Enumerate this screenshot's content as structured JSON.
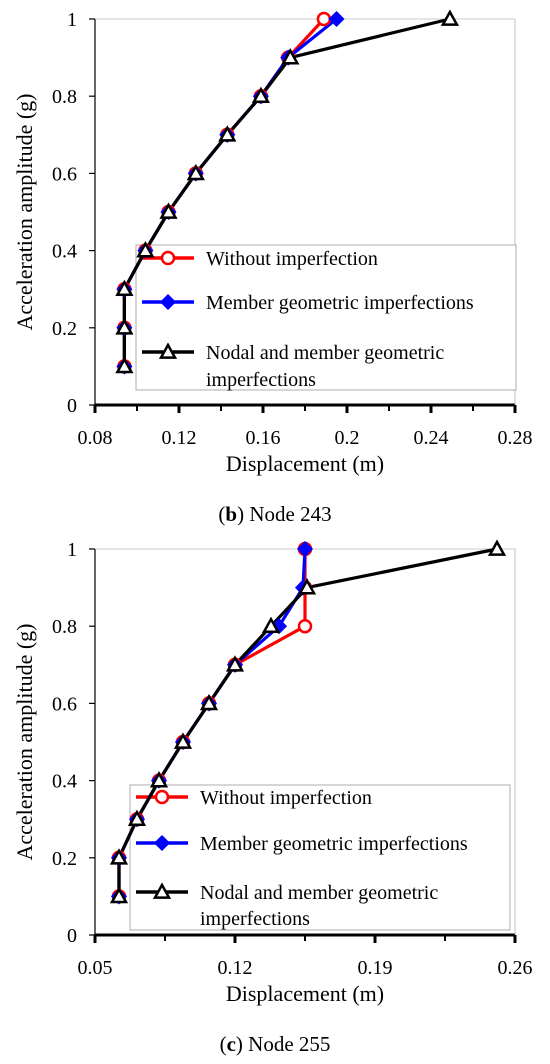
{
  "chart_data": [
    {
      "type": "line",
      "caption_letter": "b",
      "caption_text": ") Node 243",
      "caption_open": "(",
      "xlabel": "Displacement (m)",
      "ylabel": "Acceleration amplitude (g)",
      "xlim": [
        0.08,
        0.28
      ],
      "ylim": [
        0,
        1
      ],
      "xticks": [
        "0.08",
        "0.12",
        "0.16",
        "0.2",
        "0.24",
        "0.28"
      ],
      "yticks": [
        "0",
        "0.2",
        "0.4",
        "0.6",
        "0.8",
        "1"
      ],
      "legend": {
        "placement": "lower-right",
        "entries": [
          "Without  imperfection",
          "Member geometric imperfections",
          "Nodal and member geometric",
          "imperfections"
        ]
      },
      "series": [
        {
          "name": "Without  imperfection",
          "color": "#ff0000",
          "marker": "circle",
          "x": [
            0.094,
            0.094,
            0.094,
            0.104,
            0.115,
            0.128,
            0.143,
            0.159,
            0.172,
            0.189
          ],
          "y": [
            0.1,
            0.2,
            0.3,
            0.4,
            0.5,
            0.6,
            0.7,
            0.8,
            0.9,
            1.0
          ]
        },
        {
          "name": "Member geometric imperfections",
          "color": "#0000ff",
          "marker": "diamond",
          "x": [
            0.094,
            0.094,
            0.094,
            0.104,
            0.115,
            0.128,
            0.143,
            0.159,
            0.172,
            0.195
          ],
          "y": [
            0.1,
            0.2,
            0.3,
            0.4,
            0.5,
            0.6,
            0.7,
            0.8,
            0.9,
            1.0
          ]
        },
        {
          "name": "Nodal and member geometric imperfections",
          "color": "#000000",
          "marker": "triangle",
          "x": [
            0.094,
            0.094,
            0.094,
            0.104,
            0.115,
            0.128,
            0.143,
            0.159,
            0.173,
            0.249
          ],
          "y": [
            0.1,
            0.2,
            0.3,
            0.4,
            0.5,
            0.6,
            0.7,
            0.8,
            0.9,
            1.0
          ]
        }
      ]
    },
    {
      "type": "line",
      "caption_letter": "c",
      "caption_text": ") Node 255",
      "caption_open": "(",
      "xlabel": "Displacement (m)",
      "ylabel": "Acceleration amplitude (g)",
      "xlim": [
        0.05,
        0.26
      ],
      "ylim": [
        0,
        1
      ],
      "xticks": [
        "0.05",
        "0.12",
        "0.19",
        "0.26"
      ],
      "yticks": [
        "0",
        "0.2",
        "0.4",
        "0.6",
        "0.8",
        "1"
      ],
      "legend": {
        "placement": "lower-right",
        "entries": [
          "Without  imperfection",
          "Member geometric imperfections",
          "Nodal and member geometric",
          "imperfections"
        ]
      },
      "series": [
        {
          "name": "Without  imperfection",
          "color": "#ff0000",
          "marker": "circle",
          "x": [
            0.062,
            0.062,
            0.071,
            0.082,
            0.094,
            0.107,
            0.12,
            0.155,
            0.155,
            0.155
          ],
          "y": [
            0.1,
            0.2,
            0.3,
            0.4,
            0.5,
            0.6,
            0.7,
            0.8,
            0.9,
            1.0
          ]
        },
        {
          "name": "Member geometric imperfections",
          "color": "#0000ff",
          "marker": "diamond",
          "x": [
            0.062,
            0.062,
            0.071,
            0.082,
            0.094,
            0.107,
            0.12,
            0.142,
            0.154,
            0.155
          ],
          "y": [
            0.1,
            0.2,
            0.3,
            0.4,
            0.5,
            0.6,
            0.7,
            0.8,
            0.9,
            1.0
          ]
        },
        {
          "name": "Nodal and member geometric imperfections",
          "color": "#000000",
          "marker": "triangle",
          "x": [
            0.062,
            0.062,
            0.071,
            0.082,
            0.094,
            0.107,
            0.12,
            0.138,
            0.156,
            0.251
          ],
          "y": [
            0.1,
            0.2,
            0.3,
            0.4,
            0.5,
            0.6,
            0.7,
            0.8,
            0.9,
            1.0
          ]
        }
      ]
    }
  ]
}
